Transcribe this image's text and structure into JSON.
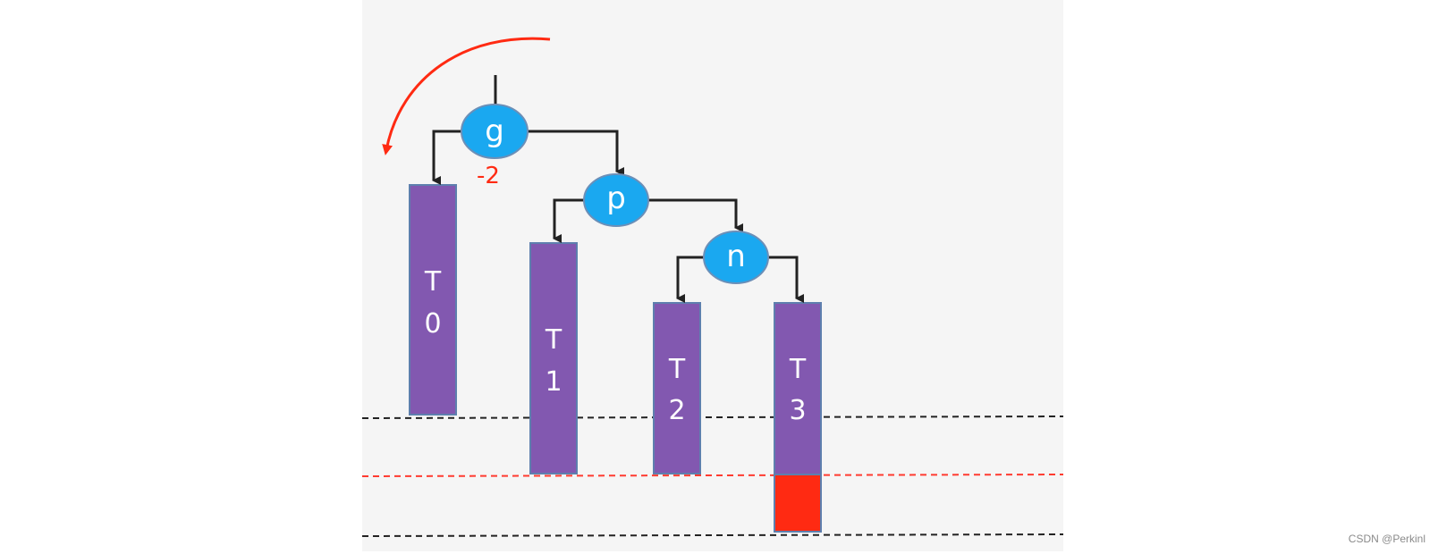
{
  "colors": {
    "panel_background": "#f5f5f5",
    "node_fill": "#1aa8f0",
    "node_stroke": "#6b8fb8",
    "subtree_fill": "#8258b0",
    "subtree_stroke": "#5e7fae",
    "edge": "#222222",
    "accent_red": "#ff2a12",
    "dashed_black": "#222222",
    "dashed_red": "#ff3b30",
    "watermark": "#8a8a8a"
  },
  "nodes": {
    "g": {
      "label": "g",
      "balance_factor": "-2"
    },
    "p": {
      "label": "p"
    },
    "n": {
      "label": "n"
    }
  },
  "subtrees": {
    "t0": {
      "line1": "T",
      "line2": "0"
    },
    "t1": {
      "line1": "T",
      "line2": "1"
    },
    "t2": {
      "line1": "T",
      "line2": "2"
    },
    "t3": {
      "line1": "T",
      "line2": "3"
    }
  },
  "rotation_arrow_icon": "counterclockwise-rotation-arrow",
  "watermark": "CSDN @Perkinl"
}
